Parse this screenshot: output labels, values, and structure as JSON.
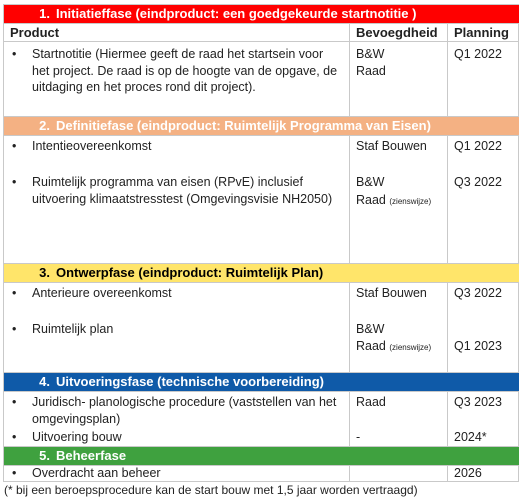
{
  "colors": {
    "red": "#ff0000",
    "orange": "#f4b183",
    "yellow": "#ffe56a",
    "blue": "#0f5aa8",
    "green": "#3fa13f",
    "grid": "#c9c9c9"
  },
  "header": {
    "product": "Product",
    "authority": "Bevoegdheid",
    "planning": "Planning"
  },
  "phases": [
    {
      "num": "1.",
      "title": "Initiatieffase (eindproduct: een goedgekeurde startnotitie )"
    },
    {
      "num": "2.",
      "title": "Definitiefase (eindproduct: Ruimtelijk Programma van Eisen)"
    },
    {
      "num": "3.",
      "title": "Ontwerpfase (eindproduct: Ruimtelijk Plan)"
    },
    {
      "num": "4.",
      "title": "Uitvoeringsfase (technische voorbereiding)"
    },
    {
      "num": "5.",
      "title": "Beheerfase"
    }
  ],
  "bullet": "•",
  "rows": {
    "r1": {
      "product": "Startnotitie (Hiermee geeft de raad het startsein voor het project. De raad is op de hoogte van de opgave,  de uitdaging en het proces rond dit project).",
      "auth1": "B&W",
      "auth2": "Raad",
      "plan": "Q1 2022"
    },
    "r2a": {
      "product": "Intentieovereenkomst",
      "auth": "Staf Bouwen",
      "plan": "Q1 2022"
    },
    "r2b": {
      "product": "Ruimtelijk programma van eisen (RPvE) inclusief uitvoering klimaatstresstest (Omgevingsvisie NH2050)",
      "auth1": "B&W",
      "auth2": "Raad",
      "auth2_note": "(zienswijze)",
      "plan": "Q3 2022"
    },
    "r3a": {
      "product": "Anterieure overeenkomst",
      "auth": "Staf Bouwen",
      "plan": "Q3 2022"
    },
    "r3b": {
      "product": "Ruimtelijk plan",
      "auth1": "B&W",
      "auth2": "Raad",
      "auth2_note": "(zienswijze)",
      "plan": "Q1 2023"
    },
    "r4a": {
      "product": "Juridisch- planologische procedure (vaststellen van het omgevingsplan)",
      "auth": "Raad",
      "plan": "Q3 2023"
    },
    "r4b": {
      "product": "Uitvoering bouw",
      "auth": "-",
      "plan": "2024*"
    },
    "r5a": {
      "product": "Overdracht aan beheer",
      "auth": "",
      "plan": "2026"
    }
  },
  "footnote": "(* bij een beroepsprocedure kan de start bouw met 1,5 jaar worden vertraagd)"
}
